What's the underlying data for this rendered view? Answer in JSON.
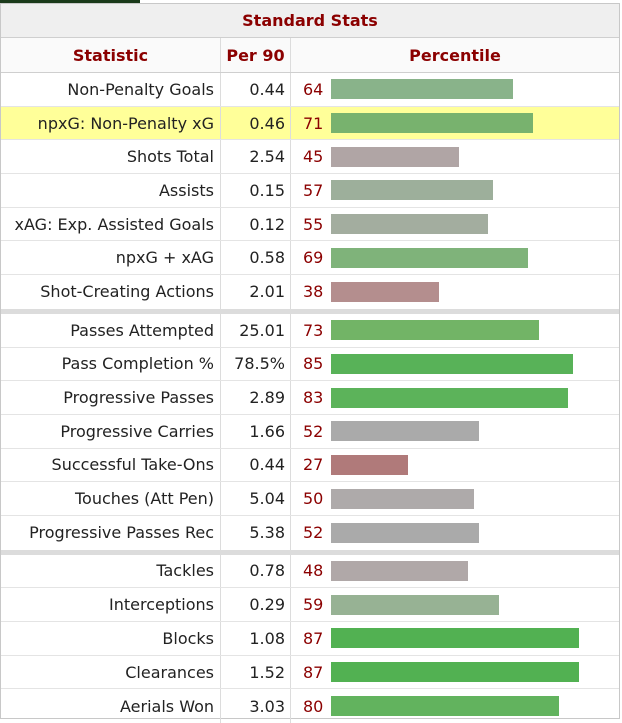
{
  "caption": "Standard Stats",
  "headers": {
    "statistic": "Statistic",
    "per90": "Per 90",
    "percentile": "Percentile"
  },
  "groups": [
    [
      {
        "stat": "Non-Penalty Goals",
        "per90": "0.44",
        "pct": 64,
        "color": "#89b38a"
      },
      {
        "stat": "npxG: Non-Penalty xG",
        "per90": "0.46",
        "pct": 71,
        "color": "#78b26e",
        "highlight": true
      },
      {
        "stat": "Shots Total",
        "per90": "2.54",
        "pct": 45,
        "color": "#b0a5a5"
      },
      {
        "stat": "Assists",
        "per90": "0.15",
        "pct": 57,
        "color": "#9daf9b"
      },
      {
        "stat": "xAG: Exp. Assisted Goals",
        "per90": "0.12",
        "pct": 55,
        "color": "#a3ad9f"
      },
      {
        "stat": "npxG + xAG",
        "per90": "0.58",
        "pct": 69,
        "color": "#7fb37a"
      },
      {
        "stat": "Shot-Creating Actions",
        "per90": "2.01",
        "pct": 38,
        "color": "#b48e8e"
      }
    ],
    [
      {
        "stat": "Passes Attempted",
        "per90": "25.01",
        "pct": 73,
        "color": "#72b466"
      },
      {
        "stat": "Pass Completion %",
        "per90": "78.5%",
        "pct": 85,
        "color": "#58b258"
      },
      {
        "stat": "Progressive Passes",
        "per90": "2.89",
        "pct": 83,
        "color": "#5cb35a"
      },
      {
        "stat": "Progressive Carries",
        "per90": "1.66",
        "pct": 52,
        "color": "#aaaaaa"
      },
      {
        "stat": "Successful Take-Ons",
        "per90": "0.44",
        "pct": 27,
        "color": "#b07a7a"
      },
      {
        "stat": "Touches (Att Pen)",
        "per90": "5.04",
        "pct": 50,
        "color": "#aeaaaa"
      },
      {
        "stat": "Progressive Passes Rec",
        "per90": "5.38",
        "pct": 52,
        "color": "#aaaaaa"
      }
    ],
    [
      {
        "stat": "Tackles",
        "per90": "0.78",
        "pct": 48,
        "color": "#b0a8a8"
      },
      {
        "stat": "Interceptions",
        "per90": "0.29",
        "pct": 59,
        "color": "#97b294"
      },
      {
        "stat": "Blocks",
        "per90": "1.08",
        "pct": 87,
        "color": "#52b152"
      },
      {
        "stat": "Clearances",
        "per90": "1.52",
        "pct": 87,
        "color": "#52b152"
      },
      {
        "stat": "Aerials Won",
        "per90": "3.03",
        "pct": 80,
        "color": "#62b35e"
      }
    ]
  ]
}
